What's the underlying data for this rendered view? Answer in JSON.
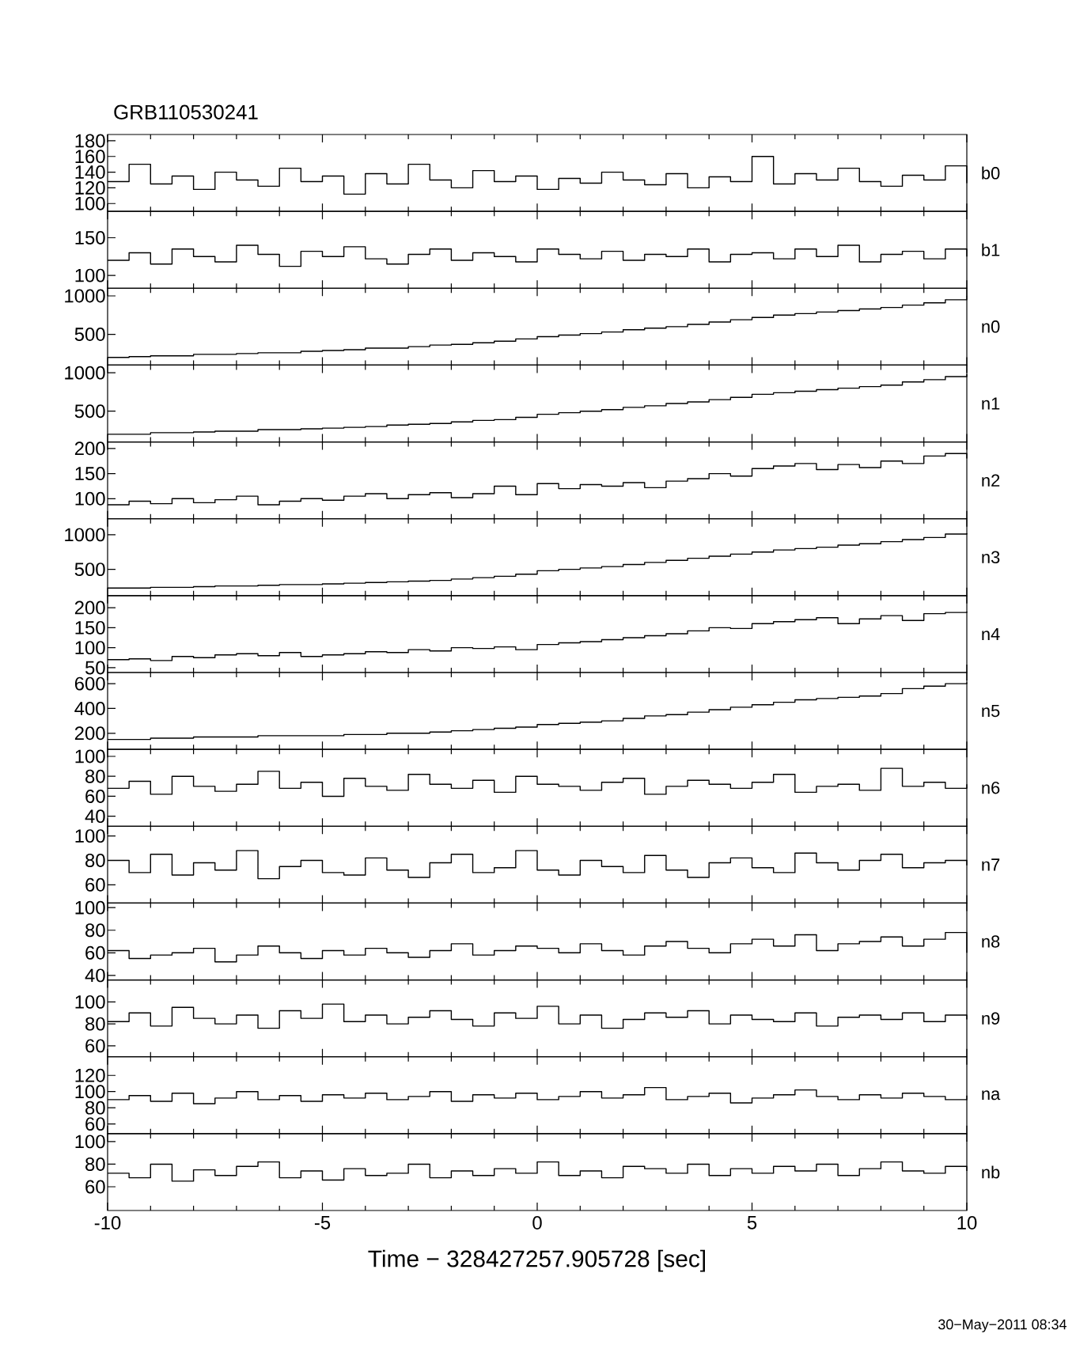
{
  "chart_data": [
    {
      "type": "step",
      "title": "GRB110530241",
      "tick_labels": "y",
      "xlim": [
        -10,
        10
      ],
      "xticks": [
        -10,
        -5,
        0,
        5,
        10
      ],
      "ylim": [
        90,
        188
      ],
      "yticks": [
        100,
        120,
        140,
        160,
        180
      ],
      "x": [
        -10,
        -9.5,
        -9,
        -8.5,
        -8,
        -7.5,
        -7,
        -6.5,
        -6,
        -5.5,
        -5,
        -4.5,
        -4,
        -3.5,
        -3,
        -2.5,
        -2,
        -1.5,
        -1,
        -0.5,
        0,
        0.5,
        1,
        1.5,
        2,
        2.5,
        3,
        3.5,
        4,
        4.5,
        5,
        5.5,
        6,
        6.5,
        7,
        7.5,
        8,
        8.5,
        9,
        9.5,
        10
      ],
      "series": [
        {
          "name": "b0",
          "color": "#000000",
          "values": [
            128,
            150,
            125,
            135,
            118,
            140,
            130,
            122,
            145,
            128,
            135,
            112,
            138,
            125,
            150,
            130,
            120,
            142,
            128,
            135,
            118,
            132,
            126,
            140,
            130,
            124,
            138,
            120,
            134,
            128,
            160,
            125,
            138,
            130,
            145,
            128,
            122,
            136,
            130,
            148,
            126
          ]
        }
      ]
    },
    {
      "type": "step",
      "tick_labels": "y",
      "xlim": [
        -10,
        10
      ],
      "xticks": [
        -10,
        -5,
        0,
        5,
        10
      ],
      "ylim": [
        83,
        185
      ],
      "yticks": [
        100,
        150
      ],
      "x": [
        -10,
        -9.5,
        -9,
        -8.5,
        -8,
        -7.5,
        -7,
        -6.5,
        -6,
        -5.5,
        -5,
        -4.5,
        -4,
        -3.5,
        -3,
        -2.5,
        -2,
        -1.5,
        -1,
        -0.5,
        0,
        0.5,
        1,
        1.5,
        2,
        2.5,
        3,
        3.5,
        4,
        4.5,
        5,
        5.5,
        6,
        6.5,
        7,
        7.5,
        8,
        8.5,
        9,
        9.5,
        10
      ],
      "series": [
        {
          "name": "b1",
          "color": "#000000",
          "values": [
            120,
            130,
            115,
            135,
            125,
            118,
            140,
            128,
            112,
            132,
            125,
            138,
            122,
            115,
            128,
            135,
            120,
            130,
            125,
            118,
            135,
            128,
            122,
            132,
            120,
            128,
            125,
            135,
            118,
            128,
            130,
            122,
            135,
            125,
            140,
            118,
            128,
            132,
            122,
            135,
            125
          ]
        }
      ]
    },
    {
      "type": "step",
      "tick_labels": "y",
      "xlim": [
        -10,
        10
      ],
      "xticks": [
        -10,
        -5,
        0,
        5,
        10
      ],
      "ylim": [
        100,
        1100
      ],
      "yticks": [
        500,
        1000
      ],
      "x": [
        -10,
        -9.5,
        -9,
        -8.5,
        -8,
        -7.5,
        -7,
        -6.5,
        -6,
        -5.5,
        -5,
        -4.5,
        -4,
        -3.5,
        -3,
        -2.5,
        -2,
        -1.5,
        -1,
        -0.5,
        0,
        0.5,
        1,
        1.5,
        2,
        2.5,
        3,
        3.5,
        4,
        4.5,
        5,
        5.5,
        6,
        6.5,
        7,
        7.5,
        8,
        8.5,
        9,
        9.5,
        10
      ],
      "series": [
        {
          "name": "n0",
          "color": "#000000",
          "values": [
            200,
            210,
            220,
            220,
            240,
            240,
            250,
            260,
            260,
            280,
            290,
            300,
            320,
            320,
            340,
            360,
            370,
            390,
            410,
            440,
            470,
            490,
            510,
            530,
            560,
            580,
            600,
            630,
            660,
            690,
            720,
            750,
            770,
            790,
            810,
            830,
            850,
            880,
            910,
            950,
            1000
          ]
        }
      ]
    },
    {
      "type": "step",
      "tick_labels": "y",
      "xlim": [
        -10,
        10
      ],
      "xticks": [
        -10,
        -5,
        0,
        5,
        10
      ],
      "ylim": [
        100,
        1100
      ],
      "yticks": [
        500,
        1000
      ],
      "x": [
        -10,
        -9.5,
        -9,
        -8.5,
        -8,
        -7.5,
        -7,
        -6.5,
        -6,
        -5.5,
        -5,
        -4.5,
        -4,
        -3.5,
        -3,
        -2.5,
        -2,
        -1.5,
        -1,
        -0.5,
        0,
        0.5,
        1,
        1.5,
        2,
        2.5,
        3,
        3.5,
        4,
        4.5,
        5,
        5.5,
        6,
        6.5,
        7,
        7.5,
        8,
        8.5,
        9,
        9.5,
        10
      ],
      "series": [
        {
          "name": "n1",
          "color": "#000000",
          "values": [
            200,
            200,
            220,
            220,
            230,
            240,
            240,
            260,
            260,
            270,
            280,
            290,
            300,
            320,
            330,
            340,
            360,
            380,
            390,
            420,
            460,
            480,
            500,
            520,
            550,
            570,
            600,
            620,
            650,
            680,
            720,
            740,
            760,
            780,
            800,
            820,
            840,
            880,
            910,
            950,
            980
          ]
        }
      ]
    },
    {
      "type": "step",
      "tick_labels": "y",
      "xlim": [
        -10,
        10
      ],
      "xticks": [
        -10,
        -5,
        0,
        5,
        10
      ],
      "ylim": [
        60,
        213
      ],
      "yticks": [
        100,
        150,
        200
      ],
      "x": [
        -10,
        -9.5,
        -9,
        -8.5,
        -8,
        -7.5,
        -7,
        -6.5,
        -6,
        -5.5,
        -5,
        -4.5,
        -4,
        -3.5,
        -3,
        -2.5,
        -2,
        -1.5,
        -1,
        -0.5,
        0,
        0.5,
        1,
        1.5,
        2,
        2.5,
        3,
        3.5,
        4,
        4.5,
        5,
        5.5,
        6,
        6.5,
        7,
        7.5,
        8,
        8.5,
        9,
        9.5,
        10
      ],
      "series": [
        {
          "name": "n2",
          "color": "#000000",
          "values": [
            88,
            95,
            90,
            100,
            92,
            98,
            105,
            88,
            95,
            100,
            97,
            105,
            110,
            100,
            108,
            112,
            102,
            110,
            125,
            108,
            130,
            120,
            128,
            125,
            132,
            122,
            135,
            140,
            150,
            145,
            160,
            165,
            170,
            158,
            168,
            162,
            175,
            170,
            185,
            190,
            180
          ]
        }
      ]
    },
    {
      "type": "step",
      "tick_labels": "y",
      "xlim": [
        -10,
        10
      ],
      "xticks": [
        -10,
        -5,
        0,
        5,
        10
      ],
      "ylim": [
        120,
        1230
      ],
      "yticks": [
        500,
        1000
      ],
      "x": [
        -10,
        -9.5,
        -9,
        -8.5,
        -8,
        -7.5,
        -7,
        -6.5,
        -6,
        -5.5,
        -5,
        -4.5,
        -4,
        -3.5,
        -3,
        -2.5,
        -2,
        -1.5,
        -1,
        -0.5,
        0,
        0.5,
        1,
        1.5,
        2,
        2.5,
        3,
        3.5,
        4,
        4.5,
        5,
        5.5,
        6,
        6.5,
        7,
        7.5,
        8,
        8.5,
        9,
        9.5,
        10
      ],
      "series": [
        {
          "name": "n3",
          "color": "#000000",
          "values": [
            230,
            230,
            240,
            240,
            250,
            260,
            260,
            270,
            280,
            280,
            290,
            300,
            310,
            320,
            330,
            340,
            360,
            380,
            400,
            430,
            480,
            500,
            520,
            540,
            570,
            600,
            630,
            660,
            690,
            720,
            750,
            780,
            800,
            820,
            850,
            870,
            900,
            930,
            960,
            1010,
            1020
          ]
        }
      ]
    },
    {
      "type": "step",
      "tick_labels": "y",
      "xlim": [
        -10,
        10
      ],
      "xticks": [
        -10,
        -5,
        0,
        5,
        10
      ],
      "ylim": [
        38,
        230
      ],
      "yticks": [
        50,
        100,
        150,
        200
      ],
      "x": [
        -10,
        -9.5,
        -9,
        -8.5,
        -8,
        -7.5,
        -7,
        -6.5,
        -6,
        -5.5,
        -5,
        -4.5,
        -4,
        -3.5,
        -3,
        -2.5,
        -2,
        -1.5,
        -1,
        -0.5,
        0,
        0.5,
        1,
        1.5,
        2,
        2.5,
        3,
        3.5,
        4,
        4.5,
        5,
        5.5,
        6,
        6.5,
        7,
        7.5,
        8,
        8.5,
        9,
        9.5,
        10
      ],
      "series": [
        {
          "name": "n4",
          "color": "#000000",
          "values": [
            70,
            72,
            68,
            78,
            75,
            82,
            85,
            80,
            88,
            78,
            82,
            85,
            90,
            88,
            95,
            92,
            100,
            98,
            102,
            95,
            108,
            112,
            115,
            120,
            125,
            130,
            135,
            142,
            150,
            148,
            160,
            165,
            170,
            175,
            160,
            172,
            180,
            168,
            185,
            188,
            190
          ]
        }
      ]
    },
    {
      "type": "step",
      "tick_labels": "y",
      "xlim": [
        -10,
        10
      ],
      "xticks": [
        -10,
        -5,
        0,
        5,
        10
      ],
      "ylim": [
        70,
        690
      ],
      "yticks": [
        200,
        400,
        600
      ],
      "x": [
        -10,
        -9.5,
        -9,
        -8.5,
        -8,
        -7.5,
        -7,
        -6.5,
        -6,
        -5.5,
        -5,
        -4.5,
        -4,
        -3.5,
        -3,
        -2.5,
        -2,
        -1.5,
        -1,
        -0.5,
        0,
        0.5,
        1,
        1.5,
        2,
        2.5,
        3,
        3.5,
        4,
        4.5,
        5,
        5.5,
        6,
        6.5,
        7,
        7.5,
        8,
        8.5,
        9,
        9.5,
        10
      ],
      "series": [
        {
          "name": "n5",
          "color": "#000000",
          "values": [
            150,
            150,
            160,
            160,
            170,
            170,
            170,
            180,
            180,
            180,
            180,
            190,
            190,
            200,
            200,
            210,
            220,
            230,
            240,
            250,
            270,
            280,
            290,
            300,
            320,
            340,
            350,
            370,
            390,
            410,
            430,
            450,
            470,
            480,
            490,
            500,
            520,
            560,
            580,
            600,
            610
          ]
        }
      ]
    },
    {
      "type": "step",
      "tick_labels": "y",
      "xlim": [
        -10,
        10
      ],
      "xticks": [
        -10,
        -5,
        0,
        5,
        10
      ],
      "ylim": [
        30,
        107
      ],
      "yticks": [
        40,
        60,
        80,
        100
      ],
      "x": [
        -10,
        -9.5,
        -9,
        -8.5,
        -8,
        -7.5,
        -7,
        -6.5,
        -6,
        -5.5,
        -5,
        -4.5,
        -4,
        -3.5,
        -3,
        -2.5,
        -2,
        -1.5,
        -1,
        -0.5,
        0,
        0.5,
        1,
        1.5,
        2,
        2.5,
        3,
        3.5,
        4,
        4.5,
        5,
        5.5,
        6,
        6.5,
        7,
        7.5,
        8,
        8.5,
        9,
        9.5,
        10
      ],
      "series": [
        {
          "name": "n6",
          "color": "#000000",
          "values": [
            68,
            75,
            62,
            80,
            70,
            65,
            72,
            85,
            68,
            74,
            60,
            78,
            70,
            66,
            82,
            72,
            68,
            76,
            64,
            80,
            72,
            70,
            66,
            74,
            78,
            62,
            70,
            76,
            72,
            68,
            74,
            82,
            64,
            70,
            72,
            66,
            88,
            70,
            74,
            68,
            72
          ]
        }
      ]
    },
    {
      "type": "step",
      "tick_labels": "y",
      "xlim": [
        -10,
        10
      ],
      "xticks": [
        -10,
        -5,
        0,
        5,
        10
      ],
      "ylim": [
        45,
        108
      ],
      "yticks": [
        60,
        80,
        100
      ],
      "x": [
        -10,
        -9.5,
        -9,
        -8.5,
        -8,
        -7.5,
        -7,
        -6.5,
        -6,
        -5.5,
        -5,
        -4.5,
        -4,
        -3.5,
        -3,
        -2.5,
        -2,
        -1.5,
        -1,
        -0.5,
        0,
        0.5,
        1,
        1.5,
        2,
        2.5,
        3,
        3.5,
        4,
        4.5,
        5,
        5.5,
        6,
        6.5,
        7,
        7.5,
        8,
        8.5,
        9,
        9.5,
        10
      ],
      "series": [
        {
          "name": "n7",
          "color": "#000000",
          "values": [
            80,
            70,
            85,
            68,
            78,
            72,
            88,
            65,
            75,
            80,
            70,
            68,
            82,
            72,
            66,
            78,
            85,
            70,
            74,
            88,
            72,
            68,
            80,
            75,
            70,
            84,
            72,
            66,
            78,
            82,
            74,
            70,
            86,
            78,
            72,
            80,
            85,
            74,
            78,
            80,
            76
          ]
        }
      ]
    },
    {
      "type": "step",
      "tick_labels": "y",
      "xlim": [
        -10,
        10
      ],
      "xticks": [
        -10,
        -5,
        0,
        5,
        10
      ],
      "ylim": [
        36,
        104
      ],
      "yticks": [
        40,
        60,
        80,
        100
      ],
      "x": [
        -10,
        -9.5,
        -9,
        -8.5,
        -8,
        -7.5,
        -7,
        -6.5,
        -6,
        -5.5,
        -5,
        -4.5,
        -4,
        -3.5,
        -3,
        -2.5,
        -2,
        -1.5,
        -1,
        -0.5,
        0,
        0.5,
        1,
        1.5,
        2,
        2.5,
        3,
        3.5,
        4,
        4.5,
        5,
        5.5,
        6,
        6.5,
        7,
        7.5,
        8,
        8.5,
        9,
        9.5,
        10
      ],
      "series": [
        {
          "name": "n8",
          "color": "#000000",
          "values": [
            62,
            55,
            58,
            60,
            64,
            52,
            58,
            66,
            60,
            55,
            62,
            58,
            64,
            60,
            56,
            62,
            68,
            58,
            62,
            66,
            64,
            60,
            68,
            62,
            58,
            66,
            70,
            64,
            60,
            68,
            72,
            66,
            76,
            62,
            68,
            70,
            74,
            66,
            72,
            78,
            60
          ]
        }
      ]
    },
    {
      "type": "step",
      "tick_labels": "y",
      "xlim": [
        -10,
        10
      ],
      "xticks": [
        -10,
        -5,
        0,
        5,
        10
      ],
      "ylim": [
        50,
        120
      ],
      "yticks": [
        60,
        80,
        100
      ],
      "x": [
        -10,
        -9.5,
        -9,
        -8.5,
        -8,
        -7.5,
        -7,
        -6.5,
        -6,
        -5.5,
        -5,
        -4.5,
        -4,
        -3.5,
        -3,
        -2.5,
        -2,
        -1.5,
        -1,
        -0.5,
        0,
        0.5,
        1,
        1.5,
        2,
        2.5,
        3,
        3.5,
        4,
        4.5,
        5,
        5.5,
        6,
        6.5,
        7,
        7.5,
        8,
        8.5,
        9,
        9.5,
        10
      ],
      "series": [
        {
          "name": "n9",
          "color": "#000000",
          "values": [
            82,
            90,
            78,
            95,
            85,
            80,
            88,
            76,
            92,
            85,
            98,
            82,
            88,
            80,
            86,
            92,
            84,
            78,
            90,
            85,
            96,
            80,
            88,
            76,
            84,
            90,
            86,
            92,
            80,
            88,
            84,
            82,
            90,
            78,
            86,
            88,
            84,
            90,
            82,
            88,
            84
          ]
        }
      ]
    },
    {
      "type": "step",
      "tick_labels": "y",
      "xlim": [
        -10,
        10
      ],
      "xticks": [
        -10,
        -5,
        0,
        5,
        10
      ],
      "ylim": [
        48,
        143
      ],
      "yticks": [
        60,
        80,
        100,
        120
      ],
      "x": [
        -10,
        -9.5,
        -9,
        -8.5,
        -8,
        -7.5,
        -7,
        -6.5,
        -6,
        -5.5,
        -5,
        -4.5,
        -4,
        -3.5,
        -3,
        -2.5,
        -2,
        -1.5,
        -1,
        -0.5,
        0,
        0.5,
        1,
        1.5,
        2,
        2.5,
        3,
        3.5,
        4,
        4.5,
        5,
        5.5,
        6,
        6.5,
        7,
        7.5,
        8,
        8.5,
        9,
        9.5,
        10
      ],
      "series": [
        {
          "name": "na",
          "color": "#000000",
          "values": [
            90,
            95,
            88,
            98,
            85,
            92,
            100,
            90,
            95,
            88,
            96,
            92,
            98,
            90,
            94,
            100,
            88,
            96,
            92,
            98,
            90,
            94,
            100,
            92,
            96,
            105,
            90,
            94,
            98,
            86,
            92,
            96,
            102,
            94,
            90,
            96,
            92,
            98,
            94,
            90,
            95
          ]
        }
      ]
    },
    {
      "type": "step",
      "xlabel": "Time − 328427257.905728 [sec]",
      "annotations": [
        "30−May−2011 08:34"
      ],
      "xlim": [
        -10,
        10
      ],
      "xticks": [
        -10,
        -5,
        0,
        5,
        10
      ],
      "ylim": [
        39,
        107
      ],
      "yticks": [
        60,
        80,
        100
      ],
      "x": [
        -10,
        -9.5,
        -9,
        -8.5,
        -8,
        -7.5,
        -7,
        -6.5,
        -6,
        -5.5,
        -5,
        -4.5,
        -4,
        -3.5,
        -3,
        -2.5,
        -2,
        -1.5,
        -1,
        -0.5,
        0,
        0.5,
        1,
        1.5,
        2,
        2.5,
        3,
        3.5,
        4,
        4.5,
        5,
        5.5,
        6,
        6.5,
        7,
        7.5,
        8,
        8.5,
        9,
        9.5,
        10
      ],
      "series": [
        {
          "name": "nb",
          "color": "#000000",
          "values": [
            72,
            68,
            80,
            65,
            75,
            70,
            78,
            82,
            68,
            74,
            66,
            76,
            70,
            72,
            80,
            68,
            74,
            70,
            76,
            72,
            82,
            70,
            74,
            68,
            78,
            76,
            72,
            80,
            70,
            76,
            72,
            78,
            74,
            80,
            70,
            76,
            82,
            74,
            72,
            78,
            74
          ]
        }
      ]
    }
  ]
}
